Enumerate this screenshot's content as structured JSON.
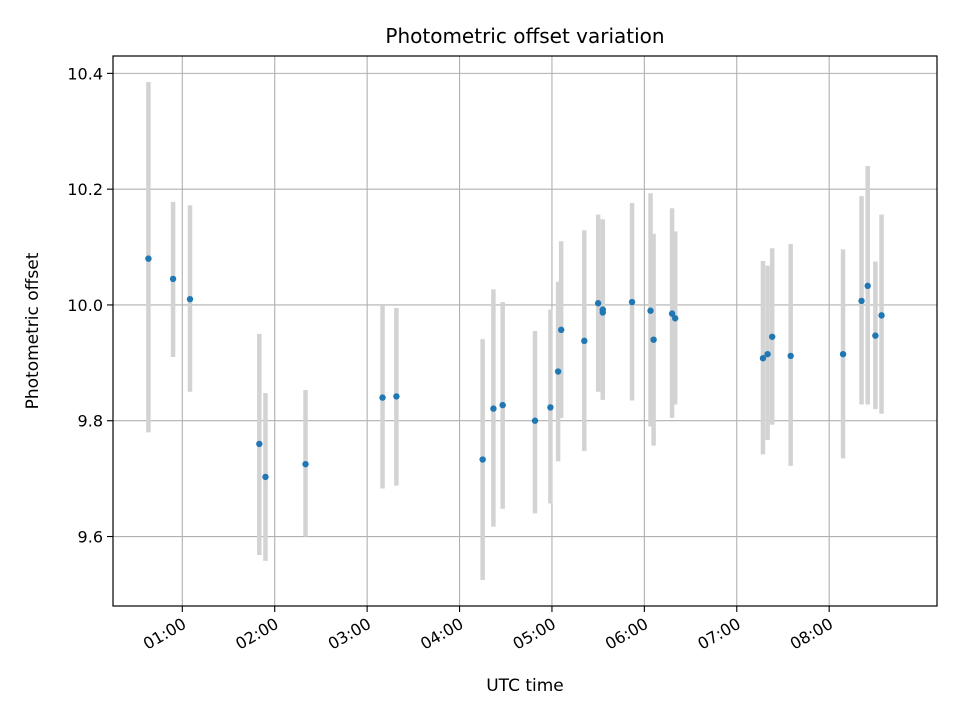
{
  "chart_data": {
    "type": "scatter",
    "title": "Photometric offset variation",
    "xlabel": "UTC time",
    "ylabel": "Photometric offset",
    "xlim": [
      "00:15",
      "09:10"
    ],
    "ylim": [
      9.48,
      10.43
    ],
    "xticks": [
      "01:00",
      "02:00",
      "03:00",
      "04:00",
      "05:00",
      "06:00",
      "07:00",
      "08:00"
    ],
    "yticks": [
      9.6,
      9.8,
      10.0,
      10.2,
      10.4
    ],
    "grid": true,
    "legend": "none",
    "errorbar_color": "#d3d3d3",
    "marker_color": "#1f77b4",
    "points": [
      {
        "t": "00:38",
        "y": 10.08,
        "lo": 9.78,
        "hi": 10.385
      },
      {
        "t": "00:54",
        "y": 10.045,
        "lo": 9.91,
        "hi": 10.178
      },
      {
        "t": "01:05",
        "y": 10.01,
        "lo": 9.85,
        "hi": 10.172
      },
      {
        "t": "01:50",
        "y": 9.76,
        "lo": 9.568,
        "hi": 9.95
      },
      {
        "t": "01:54",
        "y": 9.703,
        "lo": 9.558,
        "hi": 9.848
      },
      {
        "t": "02:20",
        "y": 9.725,
        "lo": 9.6,
        "hi": 9.853
      },
      {
        "t": "03:10",
        "y": 9.84,
        "lo": 9.683,
        "hi": 10.0
      },
      {
        "t": "03:19",
        "y": 9.842,
        "lo": 9.688,
        "hi": 9.995
      },
      {
        "t": "04:15",
        "y": 9.733,
        "lo": 9.525,
        "hi": 9.941
      },
      {
        "t": "04:22",
        "y": 9.821,
        "lo": 9.617,
        "hi": 10.027
      },
      {
        "t": "04:28",
        "y": 9.827,
        "lo": 9.648,
        "hi": 10.005
      },
      {
        "t": "04:49",
        "y": 9.8,
        "lo": 9.64,
        "hi": 9.955
      },
      {
        "t": "04:59",
        "y": 9.823,
        "lo": 9.657,
        "hi": 9.992
      },
      {
        "t": "05:04",
        "y": 9.885,
        "lo": 9.73,
        "hi": 10.04
      },
      {
        "t": "05:06",
        "y": 9.957,
        "lo": 9.805,
        "hi": 10.11
      },
      {
        "t": "05:21",
        "y": 9.938,
        "lo": 9.748,
        "hi": 10.129
      },
      {
        "t": "05:30",
        "y": 10.003,
        "lo": 9.85,
        "hi": 10.156
      },
      {
        "t": "05:33",
        "y": 9.987,
        "lo": 9.836,
        "hi": 10.148
      },
      {
        "t": "05:33",
        "y": 9.992,
        "lo": 9.845,
        "hi": 10.14
      },
      {
        "t": "05:52",
        "y": 10.005,
        "lo": 9.835,
        "hi": 10.176
      },
      {
        "t": "06:04",
        "y": 9.99,
        "lo": 9.79,
        "hi": 10.193
      },
      {
        "t": "06:06",
        "y": 9.94,
        "lo": 9.757,
        "hi": 10.123
      },
      {
        "t": "06:18",
        "y": 9.985,
        "lo": 9.805,
        "hi": 10.167
      },
      {
        "t": "06:20",
        "y": 9.977,
        "lo": 9.828,
        "hi": 10.127
      },
      {
        "t": "07:17",
        "y": 9.908,
        "lo": 9.742,
        "hi": 10.076
      },
      {
        "t": "07:20",
        "y": 9.915,
        "lo": 9.767,
        "hi": 10.068
      },
      {
        "t": "07:23",
        "y": 9.945,
        "lo": 9.793,
        "hi": 10.098
      },
      {
        "t": "07:35",
        "y": 9.912,
        "lo": 9.722,
        "hi": 10.105
      },
      {
        "t": "08:09",
        "y": 9.915,
        "lo": 9.735,
        "hi": 10.096
      },
      {
        "t": "08:21",
        "y": 10.007,
        "lo": 9.828,
        "hi": 10.188
      },
      {
        "t": "08:25",
        "y": 10.033,
        "lo": 9.828,
        "hi": 10.24
      },
      {
        "t": "08:30",
        "y": 9.947,
        "lo": 9.82,
        "hi": 10.075
      },
      {
        "t": "08:34",
        "y": 9.982,
        "lo": 9.812,
        "hi": 10.156
      }
    ]
  }
}
